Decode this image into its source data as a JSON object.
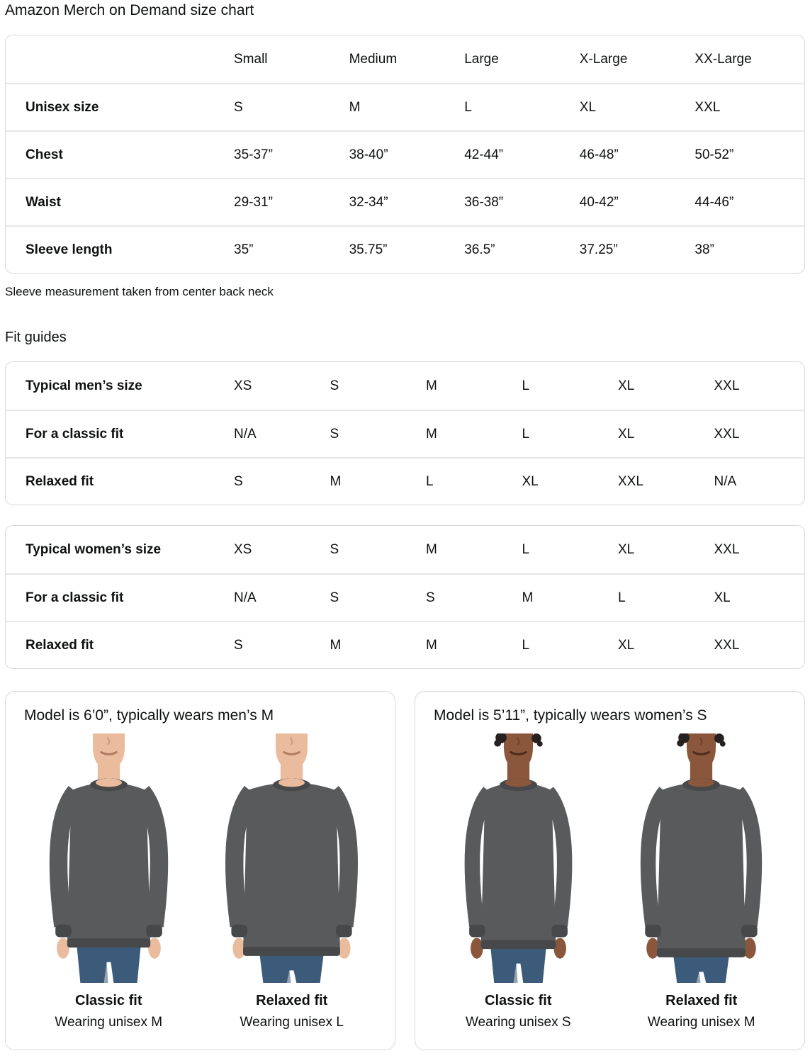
{
  "page": {
    "title": "Amazon Merch on Demand size chart",
    "note": "Sleeve measurement taken from center back neck",
    "fit_guides_heading": "Fit guides"
  },
  "size_table": {
    "columns": [
      "Small",
      "Medium",
      "Large",
      "X-Large",
      "XX-Large"
    ],
    "rows": [
      {
        "label": "Unisex size",
        "values": [
          "S",
          "M",
          "L",
          "XL",
          "XXL"
        ]
      },
      {
        "label": "Chest",
        "values": [
          "35-37”",
          "38-40”",
          "42-44”",
          "46-48”",
          "50-52”"
        ]
      },
      {
        "label": "Waist",
        "values": [
          "29-31”",
          "32-34”",
          "36-38”",
          "40-42”",
          "44-46”"
        ]
      },
      {
        "label": "Sleeve length",
        "values": [
          "35”",
          "35.75”",
          "36.5”",
          "37.25”",
          "38”"
        ]
      }
    ]
  },
  "mens_fit_table": {
    "rows": [
      {
        "label": "Typical men’s size",
        "values": [
          "XS",
          "S",
          "M",
          "L",
          "XL",
          "XXL"
        ]
      },
      {
        "label": "For a classic fit",
        "values": [
          "N/A",
          "S",
          "M",
          "L",
          "XL",
          "XXL"
        ]
      },
      {
        "label": "Relaxed fit",
        "values": [
          "S",
          "M",
          "L",
          "XL",
          "XXL",
          "N/A"
        ]
      }
    ]
  },
  "womens_fit_table": {
    "rows": [
      {
        "label": "Typical women’s size",
        "values": [
          "XS",
          "S",
          "M",
          "L",
          "XL",
          "XXL"
        ]
      },
      {
        "label": "For a classic fit",
        "values": [
          "N/A",
          "S",
          "S",
          "M",
          "L",
          "XL"
        ]
      },
      {
        "label": "Relaxed fit",
        "values": [
          "S",
          "M",
          "M",
          "L",
          "XL",
          "XXL"
        ]
      }
    ]
  },
  "model_panels": [
    {
      "heading": "Model is 6’0”, typically wears men’s M",
      "model": "male",
      "photos": [
        {
          "fit": "classic",
          "fit_label": "Classic fit",
          "wearing": "Wearing unisex M"
        },
        {
          "fit": "relaxed",
          "fit_label": "Relaxed fit",
          "wearing": "Wearing unisex L"
        }
      ]
    },
    {
      "heading": "Model is 5’11”, typically wears women’s S",
      "model": "female",
      "photos": [
        {
          "fit": "classic",
          "fit_label": "Classic fit",
          "wearing": "Wearing unisex S"
        },
        {
          "fit": "relaxed",
          "fit_label": "Relaxed fit",
          "wearing": "Wearing unisex M"
        }
      ]
    }
  ],
  "colors": {
    "text": "#0F1111",
    "table_border": "#D5D9D9",
    "row_divider": "#E7E7E7",
    "sweatshirt": "#595A5C",
    "sweatshirt_dark": "#47484A",
    "jeans": "#3C5A7A",
    "jeans_dark": "#2C4560",
    "skin_male": "#EABB9C",
    "skin_female": "#8A573C",
    "hair_female": "#26201E",
    "mouth_male": "#B07A62",
    "mouth_female": "#4A2B1D"
  }
}
